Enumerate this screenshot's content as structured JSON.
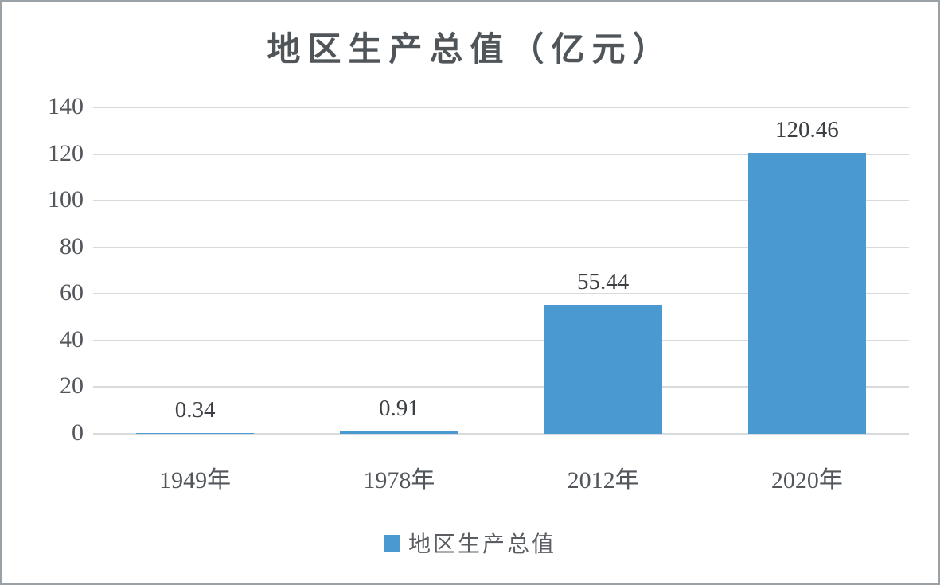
{
  "chart_data": {
    "type": "bar",
    "title": "地区生产总值（亿元）",
    "categories": [
      "1949年",
      "1978年",
      "2012年",
      "2020年"
    ],
    "values": [
      0.34,
      0.91,
      55.44,
      120.46
    ],
    "data_labels": [
      "0.34",
      "0.91",
      "55.44",
      "120.46"
    ],
    "yticks": [
      0,
      20,
      40,
      60,
      80,
      100,
      120,
      140
    ],
    "ylim": [
      0,
      140
    ],
    "xlabel": "",
    "ylabel": "",
    "grid": "horizontal",
    "legend": "地区生产总值",
    "legend_position": "bottom",
    "bar_color": "#4A99D0",
    "gridline_color": "#D7DBDE",
    "text_color": "#53575C",
    "border_color": "#9AA2A8"
  }
}
